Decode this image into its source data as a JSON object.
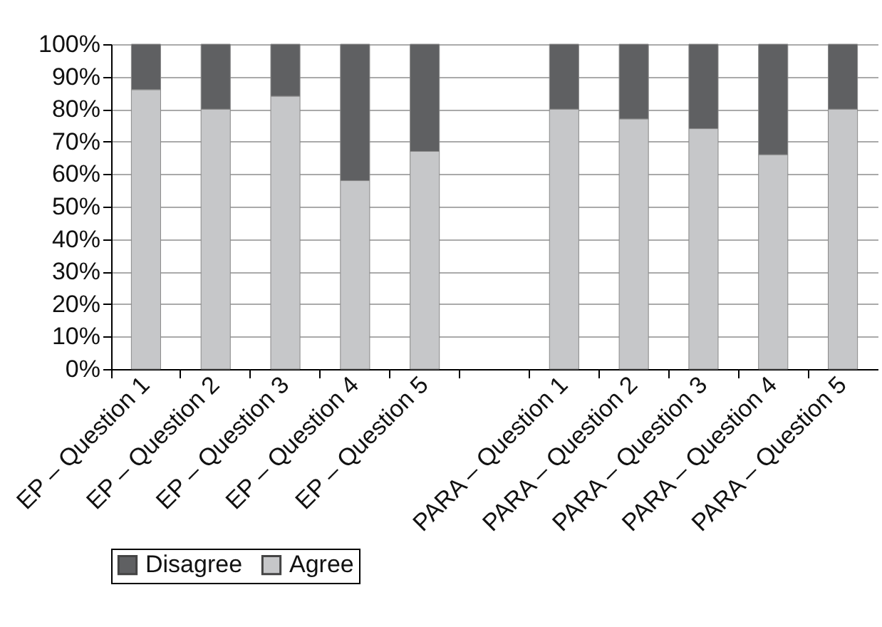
{
  "chart_data": {
    "type": "bar",
    "stacked": true,
    "categories": [
      "EP – Question 1",
      "EP – Question 2",
      "EP – Question 3",
      "EP – Question 4",
      "EP – Question 5",
      null,
      "PARA – Question 1",
      "PARA – Question 2",
      "PARA – Question 3",
      "PARA – Question 4",
      "PARA – Question 5"
    ],
    "series": [
      {
        "name": "Agree",
        "color": "#c6c7c9",
        "values": [
          86,
          80,
          84,
          58,
          67,
          null,
          80,
          77,
          74,
          66,
          80
        ]
      },
      {
        "name": "Disagree",
        "color": "#5f6062",
        "values": [
          14,
          20,
          16,
          42,
          33,
          null,
          20,
          23,
          26,
          34,
          20
        ]
      }
    ],
    "ylim": [
      0,
      100
    ],
    "yticks": [
      {
        "value": 0,
        "label": "0%"
      },
      {
        "value": 10,
        "label": "10%"
      },
      {
        "value": 20,
        "label": "20%"
      },
      {
        "value": 30,
        "label": "30%"
      },
      {
        "value": 40,
        "label": "40%"
      },
      {
        "value": 50,
        "label": "50%"
      },
      {
        "value": 60,
        "label": "60%"
      },
      {
        "value": 70,
        "label": "70%"
      },
      {
        "value": 80,
        "label": "80%"
      },
      {
        "value": 90,
        "label": "90%"
      },
      {
        "value": 100,
        "label": "100%"
      }
    ],
    "grid": "y",
    "legend": "bottom"
  }
}
